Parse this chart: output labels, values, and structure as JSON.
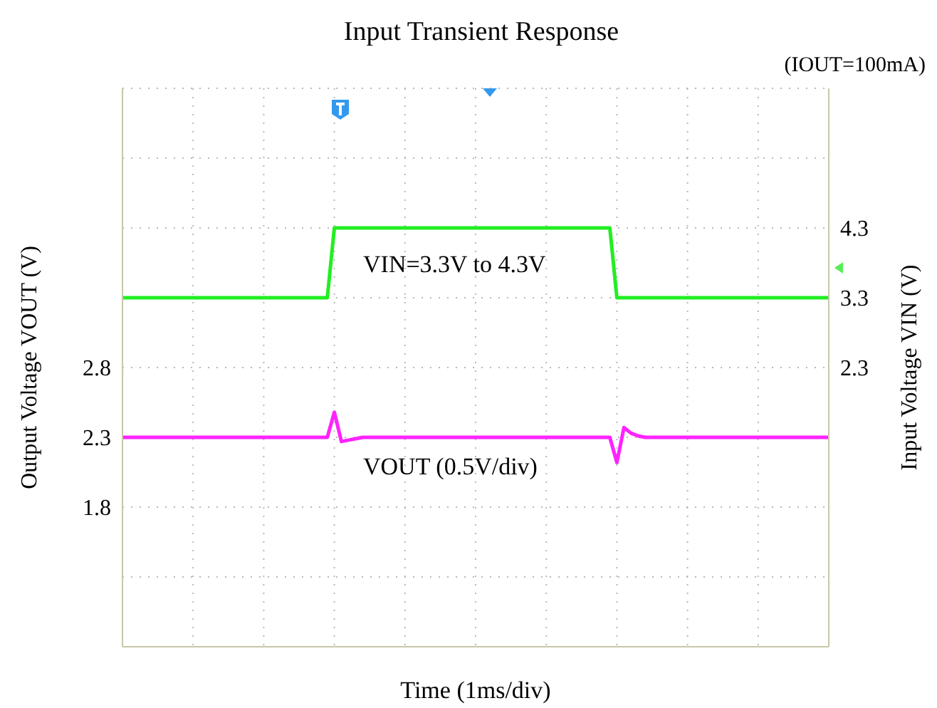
{
  "chart_data": {
    "type": "line",
    "title": "Input Transient Response",
    "subtitle": "(IOUT=100mA)",
    "xlabel": "Time (1ms/div)",
    "ylabel": "Output Voltage VOUT (V)",
    "y2label": "Input Voltage VIN (V)",
    "categories": [
      null,
      null,
      null,
      null,
      null,
      null,
      null,
      null,
      null,
      null,
      null,
      null,
      null,
      null,
      null,
      null,
      null,
      null,
      null,
      null,
      null,
      null,
      null,
      null,
      null,
      null,
      null,
      null,
      null,
      null,
      null,
      null,
      null,
      null,
      null,
      null,
      null,
      null,
      null,
      null,
      null,
      null,
      null,
      null,
      null,
      null,
      null,
      null,
      null,
      null,
      null,
      null,
      null,
      null,
      null,
      null,
      null,
      null,
      null,
      null,
      null,
      null,
      null,
      null,
      null,
      null,
      null,
      null,
      null,
      null,
      null,
      null,
      null,
      null,
      null,
      null,
      null,
      null,
      null,
      null,
      null,
      null,
      null,
      null,
      null,
      null,
      null,
      null,
      null,
      null,
      null,
      null,
      null,
      null,
      null,
      null,
      null,
      null,
      null,
      null,
      null
    ],
    "series": [
      {
        "color": "#22ee22",
        "axis": "y2",
        "values": [
          3.3,
          3.3,
          3.3,
          3.3,
          3.3,
          3.3,
          3.3,
          3.3,
          3.3,
          3.3,
          3.3,
          3.3,
          3.3,
          3.3,
          3.3,
          3.3,
          3.3,
          3.3,
          3.3,
          3.3,
          3.3,
          3.3,
          3.3,
          3.3,
          3.3,
          3.3,
          3.3,
          3.3,
          3.3,
          3.3,
          4.3,
          4.3,
          4.3,
          4.3,
          4.3,
          4.3,
          4.3,
          4.3,
          4.3,
          4.3,
          4.3,
          4.3,
          4.3,
          4.3,
          4.3,
          4.3,
          4.3,
          4.3,
          4.3,
          4.3,
          4.3,
          4.3,
          4.3,
          4.3,
          4.3,
          4.3,
          4.3,
          4.3,
          4.3,
          4.3,
          4.3,
          4.3,
          4.3,
          4.3,
          4.3,
          4.3,
          4.3,
          4.3,
          4.3,
          4.3,
          3.3,
          3.3,
          3.3,
          3.3,
          3.3,
          3.3,
          3.3,
          3.3,
          3.3,
          3.3,
          3.3,
          3.3,
          3.3,
          3.3,
          3.3,
          3.3,
          3.3,
          3.3,
          3.3,
          3.3,
          3.3,
          3.3,
          3.3,
          3.3,
          3.3,
          3.3,
          3.3,
          3.3,
          3.3,
          3.3,
          3.3
        ]
      },
      {
        "color": "#ff22ff",
        "axis": "y",
        "values": [
          2.3,
          2.3,
          2.3,
          2.3,
          2.3,
          2.3,
          2.3,
          2.3,
          2.3,
          2.3,
          2.3,
          2.3,
          2.3,
          2.3,
          2.3,
          2.3,
          2.3,
          2.3,
          2.3,
          2.3,
          2.3,
          2.3,
          2.3,
          2.3,
          2.3,
          2.3,
          2.3,
          2.3,
          2.3,
          2.3,
          2.48,
          2.27,
          2.28,
          2.29,
          2.3,
          2.3,
          2.3,
          2.3,
          2.3,
          2.3,
          2.3,
          2.3,
          2.3,
          2.3,
          2.3,
          2.3,
          2.3,
          2.3,
          2.3,
          2.3,
          2.3,
          2.3,
          2.3,
          2.3,
          2.3,
          2.3,
          2.3,
          2.3,
          2.3,
          2.3,
          2.3,
          2.3,
          2.3,
          2.3,
          2.3,
          2.3,
          2.3,
          2.3,
          2.3,
          2.3,
          2.12,
          2.37,
          2.33,
          2.31,
          2.3,
          2.3,
          2.3,
          2.3,
          2.3,
          2.3,
          2.3,
          2.3,
          2.3,
          2.3,
          2.3,
          2.3,
          2.3,
          2.3,
          2.3,
          2.3,
          2.3,
          2.3,
          2.3,
          2.3,
          2.3,
          2.3,
          2.3,
          2.3,
          2.3,
          2.3,
          2.3
        ]
      }
    ],
    "annotations": [
      "VIN=3.3V to 4.3V",
      "VOUT (0.5V/div)"
    ],
    "ylim": [
      0.8,
      4.8
    ],
    "yticks": [
      {
        "value": 0.8,
        "label": null
      },
      {
        "value": 1.3,
        "label": null
      },
      1.8,
      2.3,
      2.8,
      {
        "value": 3.3,
        "label": null
      },
      {
        "value": 3.8,
        "label": null
      },
      {
        "value": 4.3,
        "label": null
      },
      {
        "value": 4.8,
        "label": null
      }
    ],
    "y2lim": [
      -1.7,
      6.3
    ],
    "y2ticks": [
      2.3,
      3.3,
      4.3
    ],
    "tick_labels": "y",
    "grid": true,
    "marker": "none",
    "line_style": "solid"
  }
}
